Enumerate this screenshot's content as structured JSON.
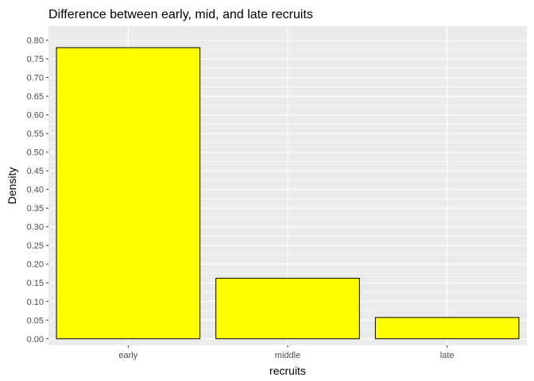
{
  "chart_data": {
    "type": "bar",
    "title": "Difference between early, mid, and late recruits",
    "xlabel": "recruits",
    "ylabel": "Density",
    "categories": [
      "early",
      "middle",
      "late"
    ],
    "values": [
      0.78,
      0.162,
      0.057
    ],
    "ylim": [
      -0.0175,
      0.8375
    ],
    "yticks": [
      "0.00",
      "0.05",
      "0.10",
      "0.15",
      "0.20",
      "0.25",
      "0.30",
      "0.35",
      "0.40",
      "0.45",
      "0.50",
      "0.55",
      "0.60",
      "0.65",
      "0.70",
      "0.75",
      "0.80"
    ],
    "grid": true,
    "legend": "none",
    "colors": {
      "bar_fill": "#FFFF00",
      "bar_outline": "#000000",
      "panel_background": "#EBEBEB",
      "grid_line": "#FFFFFF"
    }
  }
}
